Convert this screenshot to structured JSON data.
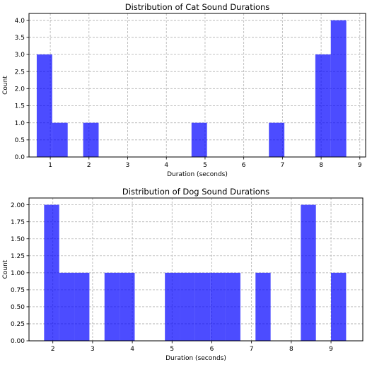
{
  "chart_data": [
    {
      "type": "bar",
      "title": "Distribution of Cat Sound Durations",
      "xlabel": "Duration (seconds)",
      "ylabel": "Count",
      "xlim": [
        0.45,
        9.15
      ],
      "ylim": [
        0,
        4.2
      ],
      "xticks": [
        1,
        2,
        3,
        4,
        5,
        6,
        7,
        8,
        9
      ],
      "xtick_labels": [
        "1",
        "2",
        "3",
        "4",
        "5",
        "6",
        "7",
        "8",
        "9"
      ],
      "yticks": [
        0,
        0.5,
        1.0,
        1.5,
        2.0,
        2.5,
        3.0,
        3.5,
        4.0
      ],
      "ytick_labels": [
        "0.0",
        "0.5",
        "1.0",
        "1.5",
        "2.0",
        "2.5",
        "3.0",
        "3.5",
        "4.0"
      ],
      "grid": true,
      "bar_color": "#0000ff",
      "bin_edges": [
        0.65,
        1.05,
        1.45,
        1.85,
        2.25,
        2.65,
        3.05,
        3.45,
        3.85,
        4.25,
        4.65,
        5.05,
        5.45,
        5.85,
        6.25,
        6.65,
        7.05,
        7.45,
        7.85,
        8.25,
        8.65
      ],
      "counts": [
        3,
        1,
        0,
        1,
        0,
        0,
        0,
        0,
        0,
        0,
        1,
        0,
        0,
        0,
        0,
        1,
        0,
        0,
        3,
        4
      ]
    },
    {
      "type": "bar",
      "title": "Distribution of Dog Sound Durations",
      "xlabel": "Duration (seconds)",
      "ylabel": "Count",
      "xlim": [
        1.4,
        9.8
      ],
      "ylim": [
        0,
        2.1
      ],
      "xticks": [
        2,
        3,
        4,
        5,
        6,
        7,
        8,
        9
      ],
      "xtick_labels": [
        "2",
        "3",
        "4",
        "5",
        "6",
        "7",
        "8",
        "9"
      ],
      "yticks": [
        0,
        0.25,
        0.5,
        0.75,
        1.0,
        1.25,
        1.5,
        1.75,
        2.0
      ],
      "ytick_labels": [
        "0.00",
        "0.25",
        "0.50",
        "0.75",
        "1.00",
        "1.25",
        "1.50",
        "1.75",
        "2.00"
      ],
      "grid": true,
      "bar_color": "#0000ff",
      "bin_edges": [
        1.78,
        2.16,
        2.54,
        2.92,
        3.3,
        3.68,
        4.06,
        4.44,
        4.82,
        5.2,
        5.58,
        5.96,
        6.34,
        6.72,
        7.1,
        7.48,
        7.86,
        8.24,
        8.62,
        9.0,
        9.38
      ],
      "counts": [
        2,
        1,
        1,
        0,
        1,
        1,
        0,
        0,
        1,
        1,
        1,
        1,
        1,
        0,
        1,
        0,
        0,
        2,
        0,
        1
      ]
    }
  ]
}
